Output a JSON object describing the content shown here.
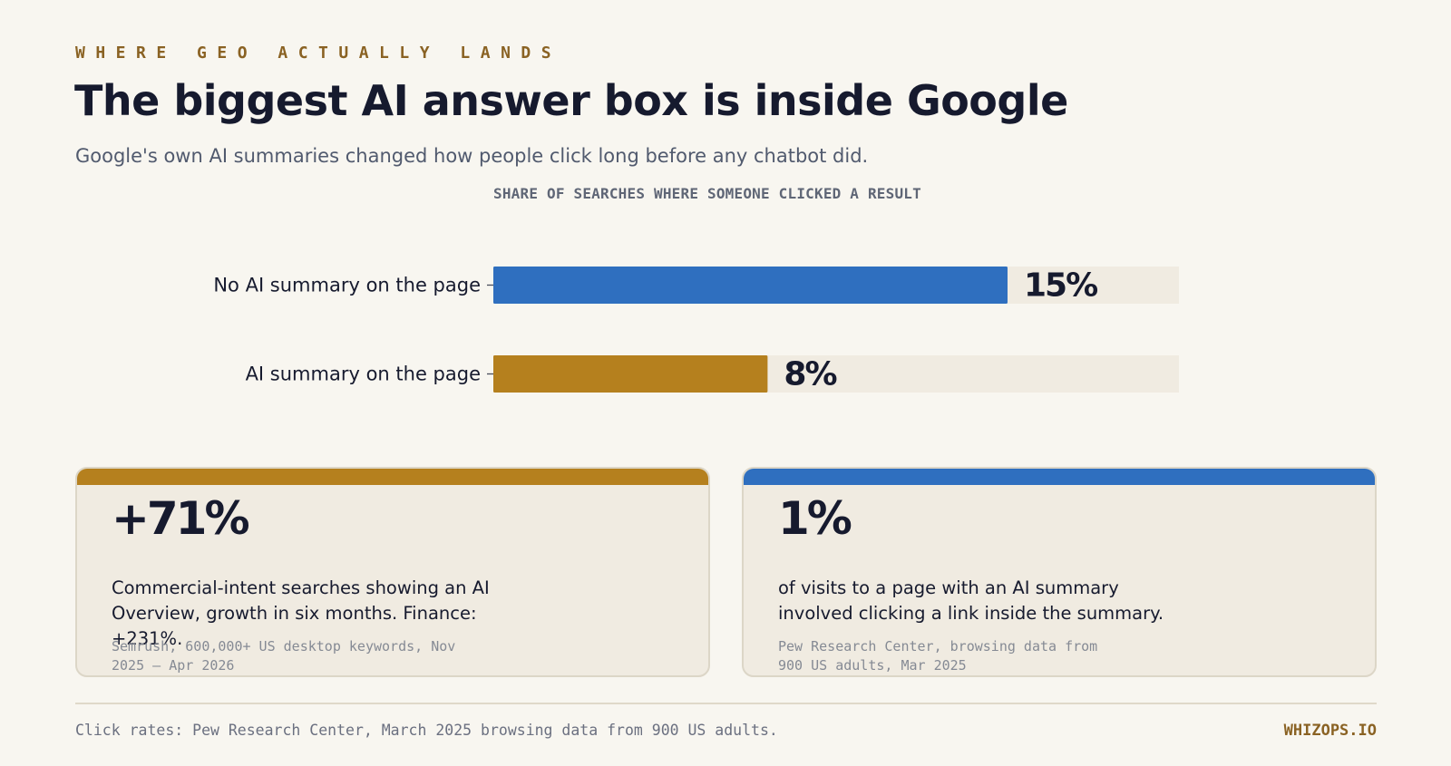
{
  "header": {
    "eyebrow": "WHERE GEO ACTUALLY LANDS",
    "title": "The biggest AI answer box is inside Google",
    "subtitle": "Google's own AI summaries changed how people click long before any chatbot did."
  },
  "chart_data": {
    "type": "bar",
    "orientation": "horizontal",
    "title": "SHARE OF SEARCHES WHERE SOMEONE CLICKED A RESULT",
    "categories": [
      "No AI summary on the page",
      "AI summary on the page"
    ],
    "values": [
      15,
      8
    ],
    "value_labels": [
      "15%",
      "8%"
    ],
    "xlim": [
      0,
      20
    ],
    "colors": [
      "#2f6fbf",
      "#b5801e"
    ],
    "track_color": "#f0ebe1",
    "grid": false,
    "legend": "none"
  },
  "cards": [
    {
      "big": "+71%",
      "description": "Commercial-intent searches showing an AI Overview, growth in six months. Finance: +231%.",
      "source": "Semrush, 600,000+ US desktop keywords, Nov 2025 – Apr 2026",
      "accent": "#b5801e"
    },
    {
      "big": "1%",
      "description": "of visits to a page with an AI summary involved clicking a link inside the summary.",
      "source": "Pew Research Center, browsing data from 900 US adults, Mar 2025",
      "accent": "#2f6fbf"
    }
  ],
  "footer": {
    "note": "Click rates: Pew Research Center, March 2025 browsing data from 900 US adults.",
    "brand": "WHIZOPS.IO"
  }
}
